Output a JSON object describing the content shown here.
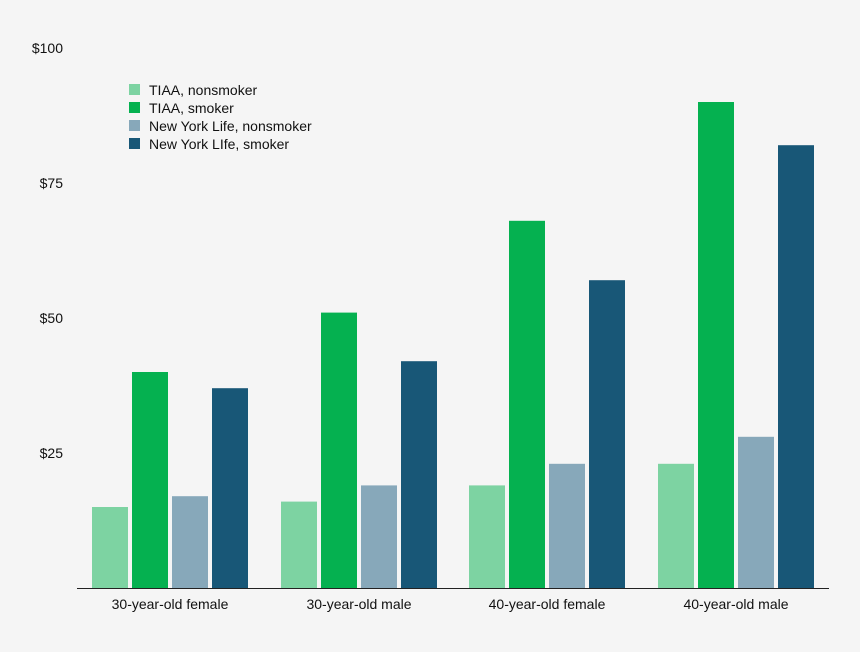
{
  "chart_data": {
    "type": "bar",
    "title": "",
    "xlabel": "",
    "ylabel": "",
    "ylim": [
      0,
      100
    ],
    "yticks": [
      {
        "value": 25,
        "label": "$25"
      },
      {
        "value": 50,
        "label": "$50"
      },
      {
        "value": 75,
        "label": "$75"
      },
      {
        "value": 100,
        "label": "$100"
      }
    ],
    "grid": false,
    "legend_position": "top-left",
    "categories": [
      "30-year-old female",
      "30-year-old male",
      "40-year-old female",
      "40-year-old male"
    ],
    "series": [
      {
        "name": "TIAA, nonsmoker",
        "color": "#7dd3a2",
        "values": [
          15,
          16,
          19,
          23
        ]
      },
      {
        "name": "TIAA, smoker",
        "color": "#05b150",
        "values": [
          40,
          51,
          68,
          90
        ]
      },
      {
        "name": "New York Life, nonsmoker",
        "color": "#87a8ba",
        "values": [
          17,
          19,
          23,
          28
        ]
      },
      {
        "name": "New York LIfe, smoker",
        "color": "#185777",
        "values": [
          37,
          42,
          57,
          82
        ]
      }
    ]
  }
}
